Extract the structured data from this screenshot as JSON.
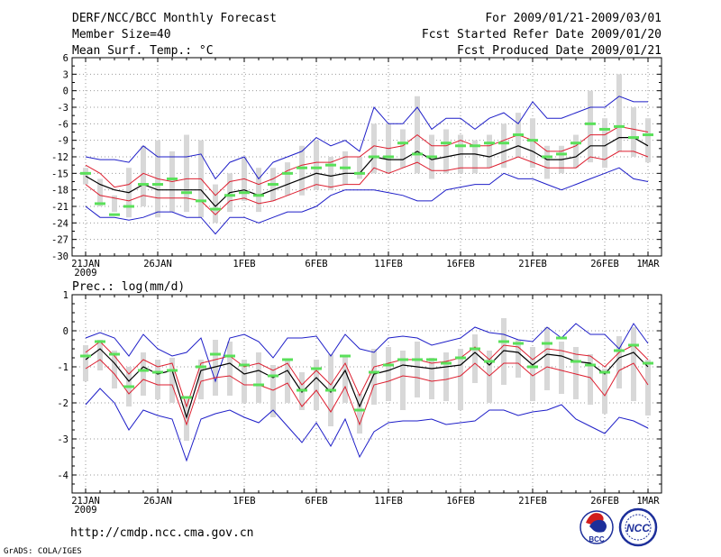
{
  "header": {
    "title_left_1": "DERF/NCC/BCC Monthly Forecast",
    "title_left_2": "Member Size=40",
    "title_left_3": "Mean Surf. Temp.: °C",
    "title_right_1": "For 2009/01/21-2009/03/01",
    "title_right_2": "Fcst Started Refer Date 2009/01/20",
    "title_right_3": "Fcst Produced Date 2009/01/21"
  },
  "footer": {
    "url": "http://cmdp.ncc.cma.gov.cn",
    "credit": "GrADS: COLA/IGES",
    "logo_bcc": "BCC",
    "logo_ncc": "NCC"
  },
  "colors": {
    "ensemble_bar": "#d8d8d8",
    "mean_line": "#000000",
    "sd_line": "#dd1e2f",
    "range_line": "#1e1ec8",
    "observed": "#5ae05a",
    "grid": "#999999"
  },
  "chart_data": [
    {
      "type": "line",
      "title": "Mean Surf. Temp.: °C",
      "x_tick_labels": [
        "21JAN",
        "26JAN",
        "1FEB",
        "6FEB",
        "11FEB",
        "16FEB",
        "21FEB",
        "26FEB",
        "1MAR"
      ],
      "x_tick_days": [
        0,
        5,
        11,
        16,
        21,
        26,
        31,
        36,
        39
      ],
      "x_year_label": "2009",
      "ylim": [
        -30,
        6
      ],
      "y_ticks": [
        6,
        3,
        0,
        -3,
        -6,
        -9,
        -12,
        -15,
        -18,
        -21,
        -24,
        -27,
        -30
      ],
      "days": [
        0,
        1,
        2,
        3,
        4,
        5,
        6,
        7,
        8,
        9,
        10,
        11,
        12,
        13,
        14,
        15,
        16,
        17,
        18,
        19,
        20,
        21,
        22,
        23,
        24,
        25,
        26,
        27,
        28,
        29,
        30,
        31,
        32,
        33,
        34,
        35,
        36,
        37,
        38,
        39
      ],
      "series": [
        {
          "name": "ensemble max",
          "values": [
            -12,
            -12.5,
            -12.5,
            -13,
            -10,
            -12,
            -12,
            -12,
            -11.5,
            -16,
            -13,
            -12,
            -16,
            -13,
            -12,
            -11,
            -8.5,
            -10,
            -9,
            -11,
            -3,
            -6,
            -6,
            -3,
            -7,
            -5,
            -5,
            -7,
            -5,
            -4,
            -6,
            -2,
            -5,
            -5,
            -4,
            -3,
            -3,
            -1,
            -2,
            -2
          ]
        },
        {
          "name": "ensemble min",
          "values": [
            -21,
            -23,
            -23,
            -23.5,
            -23,
            -22,
            -22,
            -23,
            -23,
            -26,
            -23,
            -23,
            -24,
            -23,
            -22,
            -22,
            -21,
            -19,
            -18,
            -18,
            -18,
            -18.5,
            -19,
            -20,
            -20,
            -18,
            -17.5,
            -17,
            -17,
            -15,
            -16,
            -16,
            -17,
            -18,
            -17,
            -16,
            -15,
            -14,
            -16,
            -16.5
          ]
        },
        {
          "name": "mean + sd",
          "values": [
            -13.5,
            -15,
            -17.5,
            -17,
            -15,
            -16,
            -16.5,
            -16,
            -16,
            -19,
            -16.5,
            -16,
            -17,
            -16,
            -14.5,
            -13.5,
            -13,
            -13,
            -12,
            -12,
            -10,
            -10.5,
            -10,
            -8,
            -10,
            -10,
            -9,
            -10,
            -10,
            -9,
            -8,
            -9,
            -11,
            -11,
            -10,
            -8,
            -8,
            -6.5,
            -7,
            -7.5
          ]
        },
        {
          "name": "ensemble mean",
          "values": [
            -15.5,
            -17,
            -18,
            -18.5,
            -17,
            -18,
            -18,
            -18,
            -18,
            -21,
            -18.5,
            -18,
            -19,
            -18,
            -17,
            -16,
            -15,
            -15.5,
            -15,
            -15,
            -12,
            -12.5,
            -12.5,
            -11,
            -12.5,
            -12,
            -11.5,
            -11.5,
            -12,
            -11,
            -10,
            -11,
            -12.5,
            -12.5,
            -12,
            -10,
            -10,
            -8.5,
            -8.5,
            -10
          ]
        },
        {
          "name": "mean - sd",
          "values": [
            -17,
            -19,
            -19.5,
            -20,
            -19,
            -19.5,
            -19.5,
            -19.5,
            -20,
            -22.5,
            -20,
            -19.5,
            -20.5,
            -20,
            -19,
            -18,
            -17,
            -17.5,
            -17,
            -17,
            -14,
            -15,
            -14,
            -13,
            -14.5,
            -14.5,
            -14,
            -14,
            -14,
            -13,
            -12,
            -13,
            -14,
            -14,
            -14,
            -12,
            -12.5,
            -11,
            -11,
            -12
          ]
        },
        {
          "name": "observed",
          "values": [
            -15,
            -20.5,
            -22.5,
            -21,
            -17,
            -17,
            -16,
            -18.5,
            -20,
            -21.5,
            -19,
            -18.5,
            -19,
            -17,
            -15,
            -14,
            -14,
            -13.5,
            -14,
            -15,
            -12,
            -12,
            -9.5,
            -11.5,
            -12,
            -9.5,
            -10,
            -10,
            -9.5,
            -9.5,
            -8,
            -9,
            -12,
            -11.5,
            -9.5,
            -6,
            -7,
            -6.5,
            -8.5,
            -8
          ]
        }
      ],
      "bars": [
        {
          "low": -17,
          "high": -14
        },
        {
          "low": -21,
          "high": -16
        },
        {
          "low": -22,
          "high": -19
        },
        {
          "low": -23,
          "high": -14
        },
        {
          "low": -21,
          "high": -10
        },
        {
          "low": -23,
          "high": -9
        },
        {
          "low": -22,
          "high": -11
        },
        {
          "low": -22,
          "high": -8
        },
        {
          "low": -23,
          "high": -9
        },
        {
          "low": -24,
          "high": -17
        },
        {
          "low": -22,
          "high": -15
        },
        {
          "low": -20,
          "high": -12
        },
        {
          "low": -22,
          "high": -14
        },
        {
          "low": -20,
          "high": -14
        },
        {
          "low": -19,
          "high": -13
        },
        {
          "low": -19,
          "high": -10
        },
        {
          "low": -18,
          "high": -9
        },
        {
          "low": -18,
          "high": -12
        },
        {
          "low": -17,
          "high": -11
        },
        {
          "low": -16,
          "high": -12
        },
        {
          "low": -15,
          "high": -6
        },
        {
          "low": -15,
          "high": -6
        },
        {
          "low": -14,
          "high": -7
        },
        {
          "low": -15,
          "high": -1
        },
        {
          "low": -16,
          "high": -8
        },
        {
          "low": -15,
          "high": -7
        },
        {
          "low": -15,
          "high": -8
        },
        {
          "low": -15,
          "high": -9
        },
        {
          "low": -14,
          "high": -8
        },
        {
          "low": -14,
          "high": -6
        },
        {
          "low": -12,
          "high": -4
        },
        {
          "low": -14,
          "high": -5
        },
        {
          "low": -16,
          "high": -10
        },
        {
          "low": -15,
          "high": -10
        },
        {
          "low": -14,
          "high": -8
        },
        {
          "low": -13,
          "high": 0
        },
        {
          "low": -14,
          "high": -5
        },
        {
          "low": -11,
          "high": 3
        },
        {
          "low": -12,
          "high": -3
        },
        {
          "low": -13,
          "high": -5
        }
      ]
    },
    {
      "type": "line",
      "title": "Prec.: log(mm/d)",
      "x_tick_labels": [
        "21JAN",
        "26JAN",
        "1FEB",
        "6FEB",
        "11FEB",
        "16FEB",
        "21FEB",
        "26FEB",
        "1MAR"
      ],
      "x_tick_days": [
        0,
        5,
        11,
        16,
        21,
        26,
        31,
        36,
        39
      ],
      "x_year_label": "2009",
      "ylim": [
        -4.5,
        1
      ],
      "y_ticks": [
        1,
        0,
        -1,
        -2,
        -3,
        -4
      ],
      "days": [
        0,
        1,
        2,
        3,
        4,
        5,
        6,
        7,
        8,
        9,
        10,
        11,
        12,
        13,
        14,
        15,
        16,
        17,
        18,
        19,
        20,
        21,
        22,
        23,
        24,
        25,
        26,
        27,
        28,
        29,
        30,
        31,
        32,
        33,
        34,
        35,
        36,
        37,
        38,
        39
      ],
      "series": [
        {
          "name": "ensemble max",
          "values": [
            -0.2,
            -0.05,
            -0.2,
            -0.7,
            -0.1,
            -0.5,
            -0.7,
            -0.6,
            -0.2,
            -1.4,
            -0.2,
            -0.1,
            -0.3,
            -0.75,
            -0.2,
            -0.2,
            -0.15,
            -0.7,
            -0.1,
            -0.5,
            -0.6,
            -0.2,
            -0.15,
            -0.2,
            -0.4,
            -0.3,
            -0.2,
            0.1,
            -0.05,
            -0.1,
            -0.25,
            -0.3,
            0.1,
            -0.2,
            0.2,
            -0.1,
            -0.1,
            -0.5,
            0.2,
            -0.35
          ]
        },
        {
          "name": "ensemble min",
          "values": [
            -2.05,
            -1.6,
            -2.0,
            -2.75,
            -2.2,
            -2.35,
            -2.45,
            -3.6,
            -2.45,
            -2.3,
            -2.2,
            -2.4,
            -2.55,
            -2.2,
            -2.65,
            -3.1,
            -2.55,
            -3.2,
            -2.45,
            -3.5,
            -2.8,
            -2.55,
            -2.5,
            -2.5,
            -2.45,
            -2.6,
            -2.55,
            -2.5,
            -2.2,
            -2.2,
            -2.35,
            -2.25,
            -2.2,
            -2.05,
            -2.45,
            -2.65,
            -2.85,
            -2.4,
            -2.5,
            -2.7
          ]
        },
        {
          "name": "mean + sd",
          "values": [
            -0.6,
            -0.3,
            -0.7,
            -1.2,
            -0.8,
            -1.0,
            -0.9,
            -2.1,
            -0.9,
            -0.8,
            -0.7,
            -1.0,
            -0.9,
            -1.1,
            -0.9,
            -1.5,
            -1.1,
            -1.5,
            -0.9,
            -1.8,
            -1.0,
            -0.9,
            -0.8,
            -0.8,
            -0.9,
            -0.85,
            -0.75,
            -0.45,
            -0.8,
            -0.4,
            -0.45,
            -0.8,
            -0.5,
            -0.55,
            -0.65,
            -0.7,
            -1.0,
            -0.6,
            -0.4,
            -0.8
          ]
        },
        {
          "name": "ensemble mean",
          "values": [
            -0.8,
            -0.5,
            -0.9,
            -1.4,
            -1.0,
            -1.2,
            -1.1,
            -2.4,
            -1.1,
            -1.0,
            -0.9,
            -1.2,
            -1.1,
            -1.3,
            -1.1,
            -1.7,
            -1.3,
            -1.7,
            -1.1,
            -2.1,
            -1.2,
            -1.1,
            -0.95,
            -1.0,
            -1.05,
            -1.0,
            -0.95,
            -0.6,
            -0.95,
            -0.55,
            -0.6,
            -0.95,
            -0.65,
            -0.7,
            -0.85,
            -0.9,
            -1.2,
            -0.75,
            -0.6,
            -1.0
          ]
        },
        {
          "name": "mean - sd",
          "values": [
            -1.05,
            -0.8,
            -1.2,
            -1.75,
            -1.35,
            -1.5,
            -1.5,
            -2.6,
            -1.4,
            -1.3,
            -1.25,
            -1.5,
            -1.5,
            -1.65,
            -1.45,
            -2.1,
            -1.65,
            -2.25,
            -1.55,
            -2.6,
            -1.5,
            -1.4,
            -1.25,
            -1.3,
            -1.4,
            -1.35,
            -1.25,
            -0.9,
            -1.25,
            -0.9,
            -0.9,
            -1.25,
            -1.0,
            -1.1,
            -1.2,
            -1.3,
            -1.8,
            -1.1,
            -0.9,
            -1.5
          ]
        },
        {
          "name": "observed",
          "values": [
            -0.7,
            -0.3,
            -0.65,
            -1.55,
            -1.1,
            -1.15,
            -1.1,
            -1.85,
            -1.0,
            -0.65,
            -0.7,
            -0.95,
            -1.5,
            -1.25,
            -0.8,
            -1.65,
            -1.05,
            -1.65,
            -0.7,
            -2.2,
            -1.15,
            -0.95,
            -0.8,
            -0.8,
            -0.8,
            -0.9,
            -0.75,
            -0.5,
            -0.85,
            -0.3,
            -0.35,
            -1.0,
            -0.35,
            -0.2,
            -0.85,
            -0.95,
            -1.15,
            -0.55,
            -0.4,
            -0.9
          ]
        }
      ],
      "bars": [
        {
          "low": -1.4,
          "high": -0.4
        },
        {
          "low": -1.1,
          "high": -0.25
        },
        {
          "low": -1.6,
          "high": -0.55
        },
        {
          "low": -2.1,
          "high": -1.0
        },
        {
          "low": -1.8,
          "high": -0.6
        },
        {
          "low": -1.9,
          "high": -0.8
        },
        {
          "low": -2.0,
          "high": -0.75
        },
        {
          "low": -3.05,
          "high": -1.9
        },
        {
          "low": -1.9,
          "high": -0.8
        },
        {
          "low": -1.8,
          "high": -0.25
        },
        {
          "low": -1.8,
          "high": -0.3
        },
        {
          "low": -2.0,
          "high": -0.8
        },
        {
          "low": -2.0,
          "high": -0.6
        },
        {
          "low": -2.4,
          "high": -0.95
        },
        {
          "low": -2.0,
          "high": -0.8
        },
        {
          "low": -2.2,
          "high": -1.15
        },
        {
          "low": -2.2,
          "high": -0.8
        },
        {
          "low": -2.65,
          "high": -0.65
        },
        {
          "low": -2.0,
          "high": -0.7
        },
        {
          "low": -2.85,
          "high": -1.75
        },
        {
          "low": -2.05,
          "high": -0.5
        },
        {
          "low": -1.95,
          "high": -0.45
        },
        {
          "low": -2.2,
          "high": -0.55
        },
        {
          "low": -1.85,
          "high": -0.3
        },
        {
          "low": -1.9,
          "high": -0.75
        },
        {
          "low": -1.95,
          "high": -0.6
        },
        {
          "low": -2.2,
          "high": -0.5
        },
        {
          "low": -1.45,
          "high": -0.1
        },
        {
          "low": -2.0,
          "high": -0.55
        },
        {
          "low": -1.5,
          "high": 0.35
        },
        {
          "low": -1.3,
          "high": -0.25
        },
        {
          "low": -1.95,
          "high": -0.45
        },
        {
          "low": -1.65,
          "high": 0.1
        },
        {
          "low": -1.75,
          "high": -0.3
        },
        {
          "low": -1.9,
          "high": -0.45
        },
        {
          "low": -2.05,
          "high": -0.65
        },
        {
          "low": -2.3,
          "high": -1.05
        },
        {
          "low": -1.6,
          "high": -0.15
        },
        {
          "low": -1.95,
          "high": 0.1
        },
        {
          "low": -2.35,
          "high": -0.8
        }
      ]
    }
  ]
}
